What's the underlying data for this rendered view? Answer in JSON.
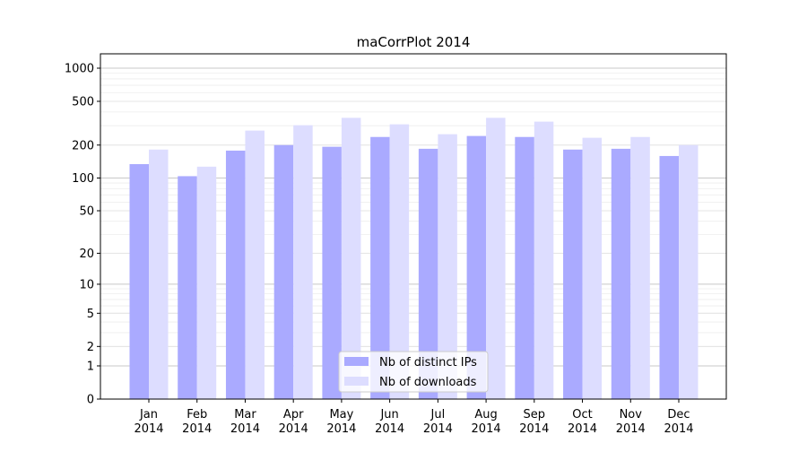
{
  "chart_data": {
    "type": "bar",
    "title": "maCorrPlot 2014",
    "xlabel": "",
    "ylabel": "",
    "yscale": "log(1+y)",
    "ylim": [
      0,
      1350
    ],
    "yticks": [
      0,
      1,
      2,
      5,
      10,
      20,
      50,
      100,
      200,
      500,
      1000
    ],
    "grid": true,
    "legend_position": "bottom-center",
    "categories": [
      "Jan\n2014",
      "Feb\n2014",
      "Mar\n2014",
      "Apr\n2014",
      "May\n2014",
      "Jun\n2014",
      "Jul\n2014",
      "Aug\n2014",
      "Sep\n2014",
      "Oct\n2014",
      "Nov\n2014",
      "Dec\n2014"
    ],
    "series": [
      {
        "name": "Nb of distinct IPs",
        "color": "#aaaaff",
        "values": [
          134,
          104,
          178,
          200,
          193,
          237,
          185,
          242,
          237,
          182,
          185,
          159
        ]
      },
      {
        "name": "Nb of downloads",
        "color": "#ddddff",
        "values": [
          182,
          127,
          271,
          303,
          354,
          309,
          251,
          354,
          327,
          233,
          237,
          200
        ]
      }
    ]
  }
}
